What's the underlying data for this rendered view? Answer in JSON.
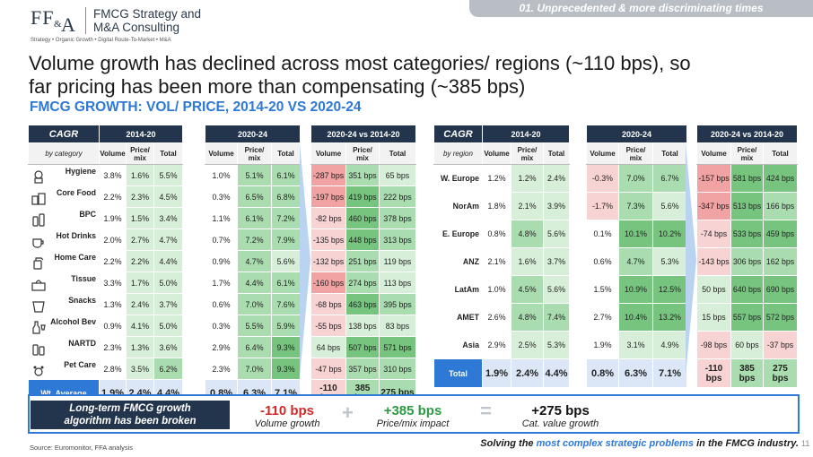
{
  "header": {
    "logo_ff": "FF",
    "logo_amp": "&",
    "logo_a": "A",
    "company_line1": "FMCG Strategy and",
    "company_line2": "M&A Consulting",
    "tagline": "Strategy • Organic Growth • Digital Route-To-Market • M&A",
    "section_tag": "01. Unprecedented & more discriminating times"
  },
  "headline_line1": "Volume growth has declined across most categories/ regions (~110 bps), so",
  "headline_line2": "far pricing has been more than compensating (~385 bps)",
  "subhead": "FMCG GROWTH: VOL/ PRICE, 2014-20 VS 2020-24",
  "colors": {
    "navy": "#23354d",
    "blue": "#2e78d6",
    "green_light": "#d7efd8",
    "green_mid": "#a9dcae",
    "green_strong": "#77c47f",
    "red_light": "#f8d3d3",
    "red_mid": "#f1a3a3"
  },
  "category_table": {
    "cagr_label": "CAGR",
    "dim_label": "by category",
    "period1": "2014-20",
    "period2": "2020-24",
    "compare": "2020-24 vs 2014-20",
    "col_volume": "Volume",
    "col_price1": "Price/",
    "col_price2": "mix",
    "col_total": "Total",
    "rows": [
      {
        "icon": "hygiene-icon",
        "name": "Hygiene",
        "p1": [
          "3.8%",
          "1.6%",
          "5.5%"
        ],
        "p2": [
          "1.0%",
          "5.1%",
          "6.1%"
        ],
        "cmp": [
          "-287 bps",
          "351 bps",
          "65 bps"
        ]
      },
      {
        "icon": "food-icon",
        "name": "Core Food",
        "p1": [
          "2.2%",
          "2.3%",
          "4.5%"
        ],
        "p2": [
          "0.3%",
          "6.5%",
          "6.8%"
        ],
        "cmp": [
          "-197 bps",
          "419 bps",
          "222 bps"
        ]
      },
      {
        "icon": "bpc-icon",
        "name": "BPC",
        "p1": [
          "1.9%",
          "1.5%",
          "3.4%"
        ],
        "p2": [
          "1.1%",
          "6.1%",
          "7.2%"
        ],
        "cmp": [
          "-82 bps",
          "460 bps",
          "378 bps"
        ]
      },
      {
        "icon": "hot-drink-icon",
        "name": "Hot Drinks",
        "p1": [
          "2.0%",
          "2.7%",
          "4.7%"
        ],
        "p2": [
          "0.7%",
          "7.2%",
          "7.9%"
        ],
        "cmp": [
          "-135 bps",
          "448 bps",
          "313 bps"
        ]
      },
      {
        "icon": "home-care-icon",
        "name": "Home Care",
        "p1": [
          "2.2%",
          "2.2%",
          "4.4%"
        ],
        "p2": [
          "0.9%",
          "4.7%",
          "5.6%"
        ],
        "cmp": [
          "-132 bps",
          "251 bps",
          "119 bps"
        ]
      },
      {
        "icon": "tissue-icon",
        "name": "Tissue",
        "p1": [
          "3.3%",
          "1.7%",
          "5.0%"
        ],
        "p2": [
          "1.7%",
          "4.4%",
          "6.1%"
        ],
        "cmp": [
          "-160 bps",
          "274 bps",
          "113 bps"
        ]
      },
      {
        "icon": "snacks-icon",
        "name": "Snacks",
        "p1": [
          "1.3%",
          "2.4%",
          "3.7%"
        ],
        "p2": [
          "0.6%",
          "7.0%",
          "7.6%"
        ],
        "cmp": [
          "-68 bps",
          "463 bps",
          "395 bps"
        ]
      },
      {
        "icon": "alcohol-icon",
        "name": "Alcohol Bev",
        "p1": [
          "0.9%",
          "4.1%",
          "5.0%"
        ],
        "p2": [
          "0.3%",
          "5.5%",
          "5.9%"
        ],
        "cmp": [
          "-55 bps",
          "138 bps",
          "83 bps"
        ]
      },
      {
        "icon": "nartd-icon",
        "name": "NARTD",
        "p1": [
          "2.3%",
          "1.3%",
          "3.6%"
        ],
        "p2": [
          "2.9%",
          "6.4%",
          "9.3%"
        ],
        "cmp": [
          "64 bps",
          "507 bps",
          "571 bps"
        ]
      },
      {
        "icon": "pet-care-icon",
        "name": "Pet Care",
        "p1": [
          "2.8%",
          "3.5%",
          "6.2%"
        ],
        "p2": [
          "2.3%",
          "7.0%",
          "9.3%"
        ],
        "cmp": [
          "-47 bps",
          "357 bps",
          "310 bps"
        ]
      }
    ],
    "total": {
      "name": "Wt. Average",
      "p1": [
        "1.9%",
        "2.4%",
        "4.4%"
      ],
      "p2": [
        "0.8%",
        "6.3%",
        "7.1%"
      ],
      "cmp": [
        "-110 bps",
        "385 bps",
        "275 bps"
      ]
    }
  },
  "region_table": {
    "cagr_label": "CAGR",
    "dim_label": "by region",
    "period1": "2014-20",
    "period2": "2020-24",
    "compare": "2020-24 vs 2014-20",
    "col_volume": "Volume",
    "col_price1": "Price/",
    "col_price2": "mix",
    "col_total": "Total",
    "rows": [
      {
        "name": "W. Europe",
        "p1": [
          "1.2%",
          "1.2%",
          "2.4%"
        ],
        "p2": [
          "-0.3%",
          "7.0%",
          "6.7%"
        ],
        "cmp": [
          "-157 bps",
          "581 bps",
          "424 bps"
        ]
      },
      {
        "name": "NorAm",
        "p1": [
          "1.8%",
          "2.1%",
          "3.9%"
        ],
        "p2": [
          "-1.7%",
          "7.3%",
          "5.6%"
        ],
        "cmp": [
          "-347 bps",
          "513 bps",
          "166 bps"
        ]
      },
      {
        "name": "E. Europe",
        "p1": [
          "0.8%",
          "4.8%",
          "5.6%"
        ],
        "p2": [
          "0.1%",
          "10.1%",
          "10.2%"
        ],
        "cmp": [
          "-74 bps",
          "533 bps",
          "459 bps"
        ]
      },
      {
        "name": "ANZ",
        "p1": [
          "2.1%",
          "1.6%",
          "3.7%"
        ],
        "p2": [
          "0.6%",
          "4.7%",
          "5.3%"
        ],
        "cmp": [
          "-143 bps",
          "306 bps",
          "162 bps"
        ]
      },
      {
        "name": "LatAm",
        "p1": [
          "1.0%",
          "4.5%",
          "5.6%"
        ],
        "p2": [
          "1.5%",
          "10.9%",
          "12.5%"
        ],
        "cmp": [
          "50 bps",
          "640 bps",
          "690 bps"
        ]
      },
      {
        "name": "AMET",
        "p1": [
          "2.6%",
          "4.8%",
          "7.4%"
        ],
        "p2": [
          "2.7%",
          "10.4%",
          "13.2%"
        ],
        "cmp": [
          "15 bps",
          "557 bps",
          "572 bps"
        ]
      },
      {
        "name": "Asia",
        "p1": [
          "2.9%",
          "2.5%",
          "5.3%"
        ],
        "p2": [
          "1.9%",
          "3.1%",
          "4.9%"
        ],
        "cmp": [
          "-98 bps",
          "60 bps",
          "-37 bps"
        ]
      }
    ],
    "total": {
      "name": "Total",
      "p1": [
        "1.9%",
        "2.4%",
        "4.4%"
      ],
      "p2": [
        "0.8%",
        "6.3%",
        "7.1%"
      ],
      "cmp": [
        "-110 bps",
        "385 bps",
        "275 bps"
      ]
    }
  },
  "banner": {
    "label_line1": "Long-term FMCG growth",
    "label_line2": "algorithm has been broken",
    "vol_value": "-110 bps",
    "vol_label": "Volume growth",
    "plus": "+",
    "price_value": "+385 bps",
    "price_label": "Price/mix impact",
    "equals": "=",
    "total_value": "+275 bps",
    "total_label": "Cat. value growth"
  },
  "source": "Source: Euromonitor, FFA analysis",
  "footer": {
    "pre": "Solving the ",
    "highlight": "most complex strategic problems",
    "post": " in the FMCG industry.",
    "page": "11"
  }
}
